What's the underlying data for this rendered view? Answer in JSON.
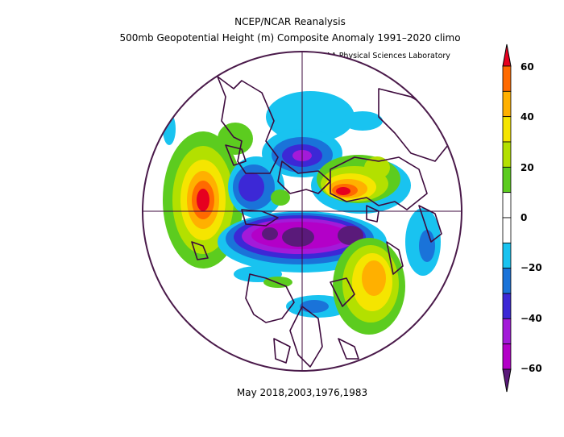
{
  "header": {
    "title": "NCEP/NCAR Reanalysis",
    "subtitle": "500mb Geopotential Height (m) Composite Anomaly 1991–2020 climo",
    "credit": "NOAA Physical Sciences Laboratory"
  },
  "caption": "May 2018,2003,1976,1983",
  "colorbar": {
    "ticks": [
      "60",
      "40",
      "20",
      "0",
      "−20",
      "−40",
      "−60"
    ],
    "colors": [
      "#e6001f",
      "#ff6a00",
      "#ffb000",
      "#f5e500",
      "#b3e000",
      "#5ccc1f",
      "#ffffff",
      "#ffffff",
      "#19c3f0",
      "#1a73d9",
      "#3c28d6",
      "#a31ad9",
      "#b300c8",
      "#5a1a7a"
    ]
  },
  "map": {
    "projection": "north-polar-stereographic",
    "colors": {
      "boundary": "#4a1a4a",
      "coast": "#3d0a3d"
    }
  }
}
